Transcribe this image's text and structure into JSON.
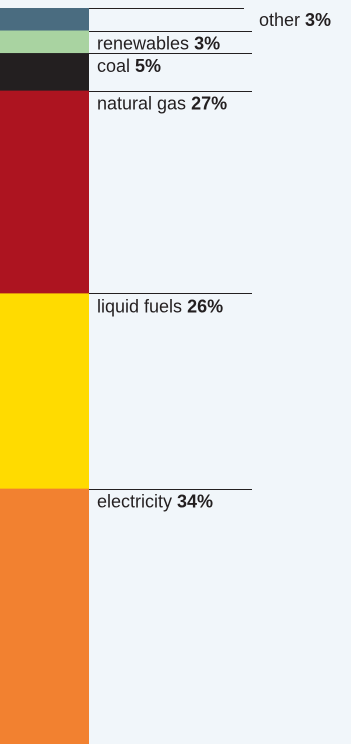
{
  "chart_data": {
    "type": "stacked-bar",
    "title": "",
    "unit": "%",
    "segments": [
      {
        "name": "other",
        "value": 3,
        "label": "other",
        "value_label": "3%",
        "color": "#4a6c80"
      },
      {
        "name": "renewables",
        "value": 3,
        "label": "renewables",
        "value_label": "3%",
        "color": "#a9d3a1"
      },
      {
        "name": "coal",
        "value": 5,
        "label": "coal",
        "value_label": "5%",
        "color": "#231f20"
      },
      {
        "name": "natural gas",
        "value": 27,
        "label": "natural gas",
        "value_label": "27%",
        "color": "#ad1420"
      },
      {
        "name": "liquid fuels",
        "value": 26,
        "label": "liquid fuels",
        "value_label": "26%",
        "color": "#ffdb00"
      },
      {
        "name": "electricity",
        "value": 34,
        "label": "electricity",
        "value_label": "34%",
        "color": "#f28130"
      }
    ]
  }
}
